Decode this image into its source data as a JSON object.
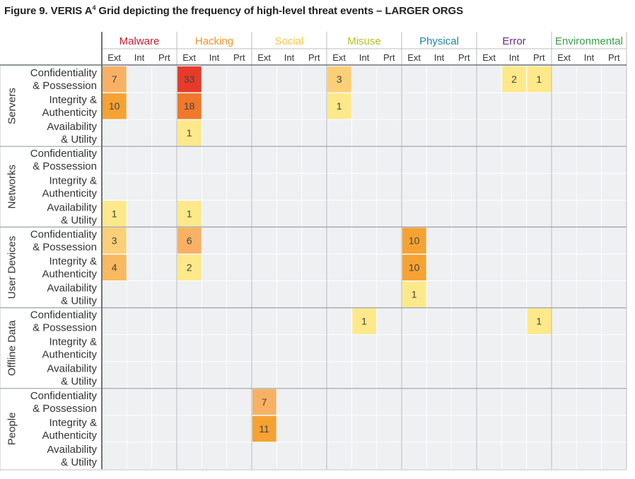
{
  "title": {
    "prefix": "Figure 9. VERIS A",
    "superscript": "4",
    "suffix": " Grid depicting the frequency of high-level threat events – LARGER ORGS"
  },
  "chart_data": {
    "type": "heatmap",
    "action_categories": [
      {
        "name": "Malware",
        "color": "#c0202f"
      },
      {
        "name": "Hacking",
        "color": "#f0942a"
      },
      {
        "name": "Social",
        "color": "#f7c54c"
      },
      {
        "name": "Misuse",
        "color": "#b6bf1e"
      },
      {
        "name": "Physical",
        "color": "#1d87a7"
      },
      {
        "name": "Error",
        "color": "#6a2a7e"
      },
      {
        "name": "Environmental",
        "color": "#38a04a"
      }
    ],
    "actor_columns": [
      "Ext",
      "Int",
      "Prt"
    ],
    "asset_groups": [
      {
        "name": "Servers",
        "attributes": [
          [
            "Confidentiality",
            "& Possession"
          ],
          [
            "Integrity &",
            "Authenticity"
          ],
          [
            "Availability",
            "& Utility"
          ]
        ]
      },
      {
        "name": "Networks",
        "attributes": [
          [
            "Confidentiality",
            "& Possession"
          ],
          [
            "Integrity &",
            "Authenticity"
          ],
          [
            "Availability",
            "& Utility"
          ]
        ]
      },
      {
        "name": "User Devices",
        "attributes": [
          [
            "Confidentiality",
            "& Possession"
          ],
          [
            "Integrity &",
            "Authenticity"
          ],
          [
            "Availability",
            "& Utility"
          ]
        ]
      },
      {
        "name": "Offline Data",
        "attributes": [
          [
            "Confidentiality",
            "& Possession"
          ],
          [
            "Integrity &",
            "Authenticity"
          ],
          [
            "Availability",
            "& Utility"
          ]
        ]
      },
      {
        "name": "People",
        "attributes": [
          [
            "Confidentiality",
            "& Possession"
          ],
          [
            "Integrity &",
            "Authenticity"
          ],
          [
            "Availability",
            "& Utility"
          ]
        ]
      }
    ],
    "cells": [
      {
        "row": 0,
        "col": 0,
        "value": 7
      },
      {
        "row": 0,
        "col": 3,
        "value": 33
      },
      {
        "row": 0,
        "col": 9,
        "value": 3
      },
      {
        "row": 0,
        "col": 16,
        "value": 2
      },
      {
        "row": 0,
        "col": 17,
        "value": 1
      },
      {
        "row": 1,
        "col": 0,
        "value": 10
      },
      {
        "row": 1,
        "col": 3,
        "value": 18
      },
      {
        "row": 1,
        "col": 9,
        "value": 1
      },
      {
        "row": 2,
        "col": 3,
        "value": 1
      },
      {
        "row": 5,
        "col": 0,
        "value": 1
      },
      {
        "row": 5,
        "col": 3,
        "value": 1
      },
      {
        "row": 6,
        "col": 0,
        "value": 3
      },
      {
        "row": 6,
        "col": 3,
        "value": 6
      },
      {
        "row": 6,
        "col": 12,
        "value": 10
      },
      {
        "row": 7,
        "col": 0,
        "value": 4
      },
      {
        "row": 7,
        "col": 3,
        "value": 2
      },
      {
        "row": 7,
        "col": 12,
        "value": 10
      },
      {
        "row": 8,
        "col": 12,
        "value": 1
      },
      {
        "row": 9,
        "col": 10,
        "value": 1
      },
      {
        "row": 9,
        "col": 17,
        "value": 1
      },
      {
        "row": 12,
        "col": 6,
        "value": 7
      },
      {
        "row": 13,
        "col": 6,
        "value": 11
      }
    ],
    "color_scale": [
      {
        "min": 1,
        "max": 2,
        "fill": "#fde98a"
      },
      {
        "min": 3,
        "max": 3,
        "fill": "#fbcf78"
      },
      {
        "min": 4,
        "max": 5,
        "fill": "#f9b95e"
      },
      {
        "min": 6,
        "max": 7,
        "fill": "#f8b164"
      },
      {
        "min": 8,
        "max": 11,
        "fill": "#f6a233"
      },
      {
        "min": 12,
        "max": 25,
        "fill": "#f0782a"
      },
      {
        "min": 26,
        "max": 100,
        "fill": "#e83a2a"
      }
    ],
    "value_text_color": "#444444",
    "grid_background": "#eef0f2"
  }
}
